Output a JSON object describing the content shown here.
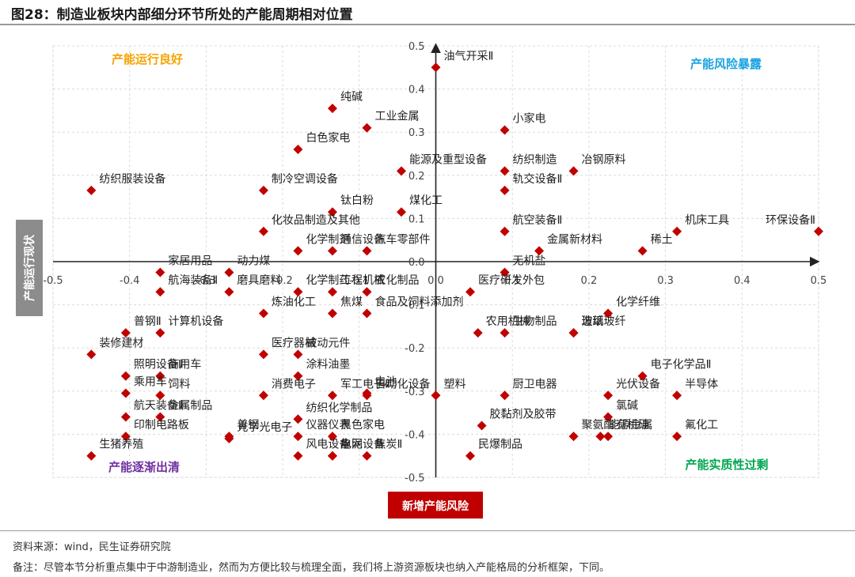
{
  "figure_title": "图28：制造业板块内部细分环节所处的产能周期相对位置",
  "footer": {
    "source": "资料来源：wind，民生证券研究院",
    "note": "备注：尽管本节分析重点集中于中游制造业，然而为方便比较与梳理全面，我们将上游资源板块也纳入产能格局的分析框架，下同。"
  },
  "colors": {
    "point": "#c00000",
    "quad_top_left": "#f5a300",
    "quad_top_right": "#1aa3e0",
    "quad_bottom_left": "#7030a0",
    "quad_bottom_right": "#00a651",
    "axis_label_box": "#c00000",
    "y_label_box": "#8c8c8c"
  },
  "chart_data": {
    "type": "scatter",
    "xlabel": "新增产能风险",
    "ylabel": "产能运行现状",
    "xlim": [
      -0.5,
      0.5
    ],
    "ylim": [
      -0.5,
      0.5
    ],
    "x_ticks": [
      "-0.5",
      "-0.4",
      "-0.3",
      "-0.2",
      "-0.1",
      "0.0",
      "0.1",
      "0.2",
      "0.3",
      "0.4",
      "0.5"
    ],
    "y_ticks": [
      "0.5",
      "0.4",
      "0.3",
      "0.2",
      "0.1",
      "0.0",
      "-0.1",
      "-0.2",
      "-0.3",
      "-0.4",
      "-0.5"
    ],
    "grid": true,
    "quadrants": {
      "top_left": "产能运行良好",
      "top_right": "产能风险暴露",
      "bottom_left": "产能逐渐出清",
      "bottom_right": "产能实质性过剩"
    },
    "points": [
      {
        "name": "油气开采Ⅱ",
        "x": 0.0,
        "y": 0.45
      },
      {
        "name": "纯碱",
        "x": -0.135,
        "y": 0.355
      },
      {
        "name": "工业金属",
        "x": -0.09,
        "y": 0.31
      },
      {
        "name": "白色家电",
        "x": -0.18,
        "y": 0.26
      },
      {
        "name": "能源及重型设备",
        "x": -0.045,
        "y": 0.21
      },
      {
        "name": "煤化工",
        "x": -0.045,
        "y": 0.115
      },
      {
        "name": "钛白粉",
        "x": -0.135,
        "y": 0.115
      },
      {
        "name": "小家电",
        "x": 0.09,
        "y": 0.305
      },
      {
        "name": "纺织制造",
        "x": 0.09,
        "y": 0.21
      },
      {
        "name": "冶钢原料",
        "x": 0.18,
        "y": 0.21
      },
      {
        "name": "轨交设备Ⅱ",
        "x": 0.09,
        "y": 0.165
      },
      {
        "name": "纺织服装设备",
        "x": -0.45,
        "y": 0.165
      },
      {
        "name": "制冷空调设备",
        "x": -0.225,
        "y": 0.165
      },
      {
        "name": "化妆品制造及其他",
        "x": -0.225,
        "y": 0.07
      },
      {
        "name": "通信设备",
        "x": -0.135,
        "y": 0.025
      },
      {
        "name": "汽车零部件",
        "x": -0.09,
        "y": 0.025
      },
      {
        "name": "化学制剂",
        "x": -0.18,
        "y": 0.025
      },
      {
        "name": "工程机械",
        "x": -0.135,
        "y": -0.07
      },
      {
        "name": "磨具磨料",
        "x": -0.27,
        "y": -0.07
      },
      {
        "name": "农化制品",
        "x": -0.09,
        "y": -0.07
      },
      {
        "name": "航空装备Ⅱ",
        "x": 0.09,
        "y": 0.07
      },
      {
        "name": "金属新材料",
        "x": 0.135,
        "y": 0.025
      },
      {
        "name": "稀土",
        "x": 0.27,
        "y": 0.025
      },
      {
        "name": "机床工具",
        "x": 0.315,
        "y": 0.07
      },
      {
        "name": "环保设备Ⅱ",
        "x": 0.5,
        "y": 0.07
      },
      {
        "name": "家居用品",
        "x": -0.36,
        "y": -0.025
      },
      {
        "name": "动力煤",
        "x": -0.27,
        "y": -0.025
      },
      {
        "name": "航海装备Ⅱ",
        "x": -0.36,
        "y": -0.07
      },
      {
        "name": "化学制药",
        "x": -0.18,
        "y": -0.07
      },
      {
        "name": "食品及饲料添加剂",
        "x": -0.09,
        "y": -0.12
      },
      {
        "name": "焦煤",
        "x": -0.135,
        "y": -0.12
      },
      {
        "name": "无机盐",
        "x": 0.09,
        "y": -0.025
      },
      {
        "name": "医疗研发外包",
        "x": 0.045,
        "y": -0.07
      },
      {
        "name": "炼油化工",
        "x": -0.225,
        "y": -0.12
      },
      {
        "name": "普钢Ⅱ",
        "x": -0.405,
        "y": -0.165
      },
      {
        "name": "被动元件",
        "x": -0.18,
        "y": -0.215
      },
      {
        "name": "医疗器械",
        "x": -0.225,
        "y": -0.215
      },
      {
        "name": "自动化设备",
        "x": -0.09,
        "y": -0.31
      },
      {
        "name": "生物制品",
        "x": 0.09,
        "y": -0.165
      },
      {
        "name": "农用机械",
        "x": 0.055,
        "y": -0.165
      },
      {
        "name": "造纸",
        "x": 0.18,
        "y": -0.165
      },
      {
        "name": "化学纤维",
        "x": 0.225,
        "y": -0.12
      },
      {
        "name": "玻璃玻纤",
        "x": 0.18,
        "y": -0.165
      },
      {
        "name": "电子化学品Ⅱ",
        "x": 0.27,
        "y": -0.265
      },
      {
        "name": "照明设备Ⅱ",
        "x": -0.405,
        "y": -0.265
      },
      {
        "name": "计算机设备",
        "x": -0.36,
        "y": -0.165
      },
      {
        "name": "装修建材",
        "x": -0.45,
        "y": -0.215
      },
      {
        "name": "商用车",
        "x": -0.36,
        "y": -0.265
      },
      {
        "name": "消费电子",
        "x": -0.225,
        "y": -0.31
      },
      {
        "name": "涂料油墨",
        "x": -0.18,
        "y": -0.265
      },
      {
        "name": "乘用车",
        "x": -0.405,
        "y": -0.305
      },
      {
        "name": "电池",
        "x": -0.09,
        "y": -0.305
      },
      {
        "name": "塑料",
        "x": 0.0,
        "y": -0.31
      },
      {
        "name": "厨卫电器",
        "x": 0.09,
        "y": -0.31
      },
      {
        "name": "航天装备Ⅱ",
        "x": -0.405,
        "y": -0.36
      },
      {
        "name": "饲料",
        "x": -0.36,
        "y": -0.31
      },
      {
        "name": "光学光电子",
        "x": -0.27,
        "y": -0.41
      },
      {
        "name": "军工电子Ⅱ",
        "x": -0.135,
        "y": -0.31
      },
      {
        "name": "光伏设备",
        "x": 0.225,
        "y": -0.31
      },
      {
        "name": "半导体",
        "x": 0.315,
        "y": -0.31
      },
      {
        "name": "生猪养殖",
        "x": -0.45,
        "y": -0.45
      },
      {
        "name": "仪器仪表",
        "x": -0.18,
        "y": -0.405
      },
      {
        "name": "纺织化学制品",
        "x": -0.18,
        "y": -0.365
      },
      {
        "name": "黑色家电",
        "x": -0.135,
        "y": -0.405
      },
      {
        "name": "聚氨酯",
        "x": 0.18,
        "y": -0.405
      },
      {
        "name": "氯碱",
        "x": 0.225,
        "y": -0.36
      },
      {
        "name": "能源金属",
        "x": 0.215,
        "y": -0.405
      },
      {
        "name": "普钢",
        "x": -0.27,
        "y": -0.405
      },
      {
        "name": "电网设备",
        "x": -0.135,
        "y": -0.45
      },
      {
        "name": "印制电路板",
        "x": -0.405,
        "y": -0.405
      },
      {
        "name": "风电设备",
        "x": -0.18,
        "y": -0.45
      },
      {
        "name": "焦炭Ⅱ",
        "x": -0.09,
        "y": -0.45
      },
      {
        "name": "胶黏剂及胶带",
        "x": 0.06,
        "y": -0.38
      },
      {
        "name": "有机硅",
        "x": 0.225,
        "y": -0.405
      },
      {
        "name": "氟化工",
        "x": 0.315,
        "y": -0.405
      },
      {
        "name": "金属制品",
        "x": -0.36,
        "y": -0.36
      },
      {
        "name": "水泥",
        "x": -0.135,
        "y": -0.45
      },
      {
        "name": "民爆制品",
        "x": 0.045,
        "y": -0.45
      }
    ]
  }
}
